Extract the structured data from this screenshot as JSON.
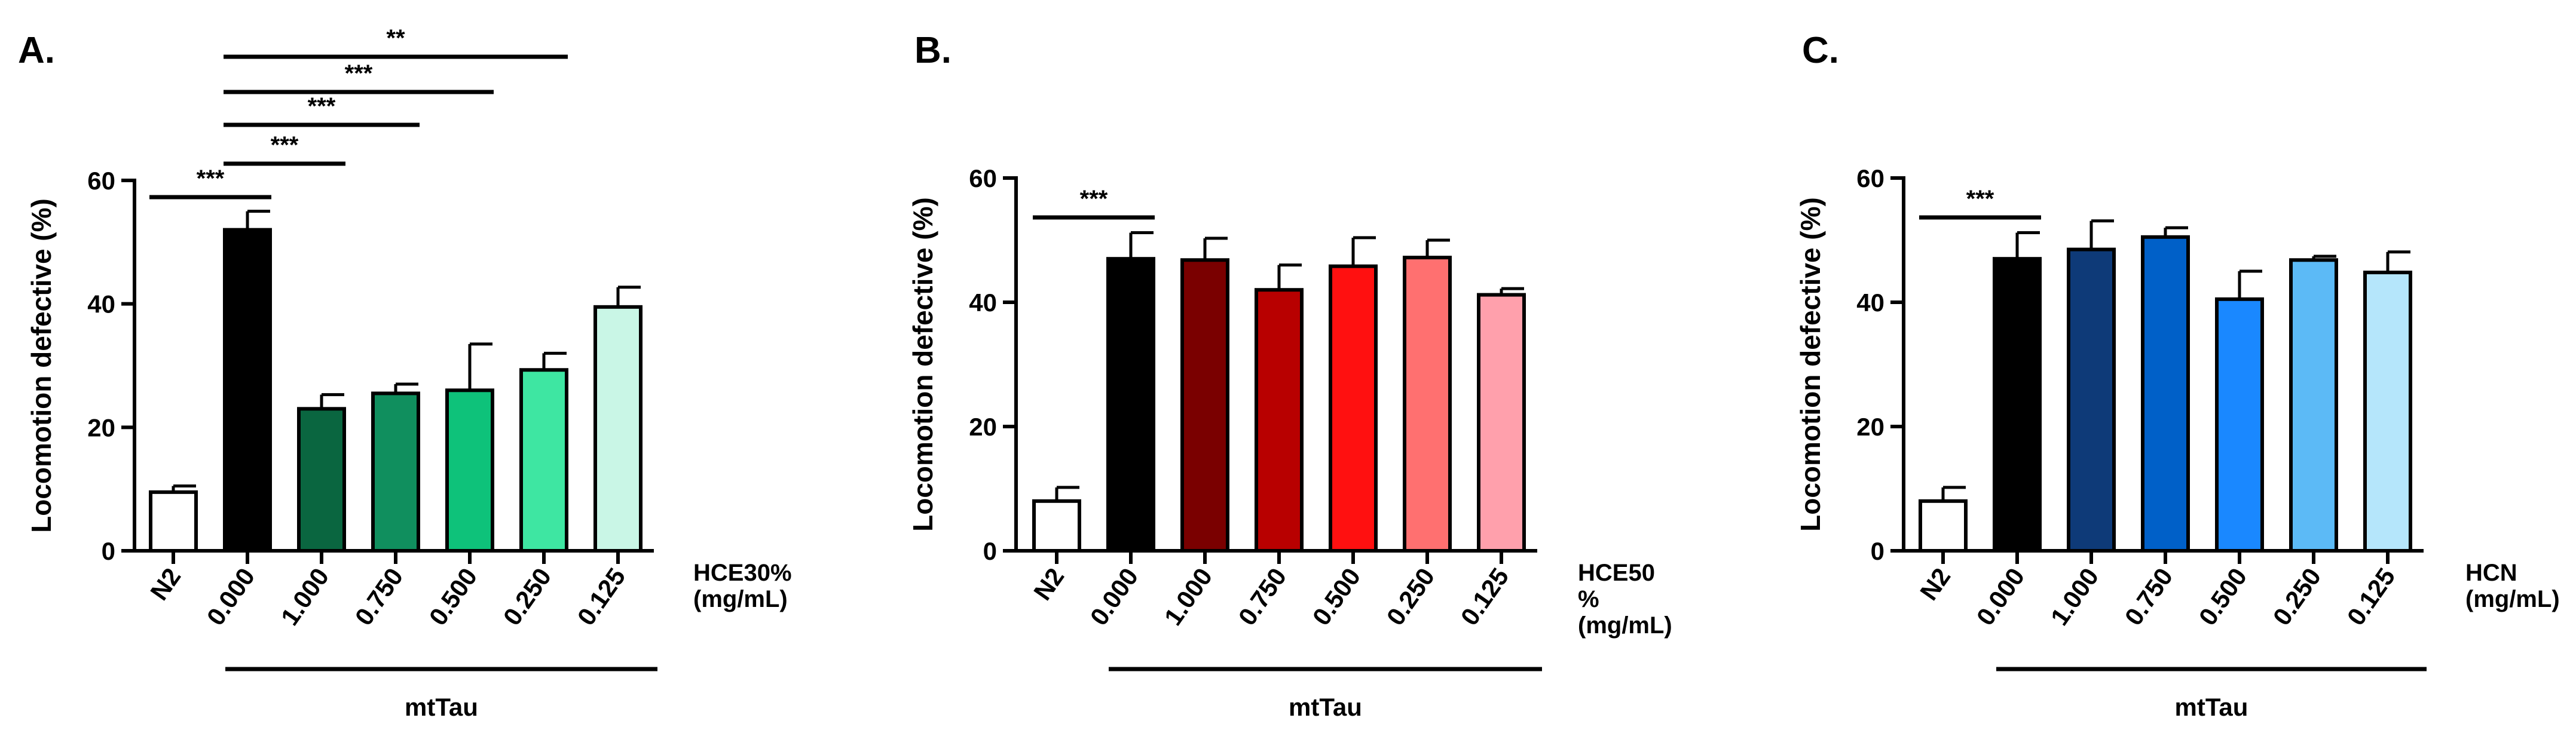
{
  "chart_data": [
    {
      "type": "bar",
      "panel": "A.",
      "ylabel": "Locomotion defective (%)",
      "ylim": [
        0,
        60
      ],
      "yticks": [
        0,
        20,
        40,
        60
      ],
      "categories": [
        "N2",
        "0.000",
        "1.000",
        "0.750",
        "0.500",
        "0.250",
        "0.125"
      ],
      "values": [
        9.5,
        52,
        23,
        25.5,
        26,
        29.3,
        39.5
      ],
      "errors": [
        1,
        3,
        2.3,
        1.5,
        7.5,
        2.7,
        3.2
      ],
      "colors": [
        "#ffffff",
        "#000000",
        "#0a6640",
        "#108f5e",
        "#0ec27a",
        "#3ee6a2",
        "#c9f6e6"
      ],
      "dose_label": [
        "HCE30%",
        "(mg/mL)"
      ],
      "group_label": "mtTau",
      "significance": [
        {
          "from": 0,
          "to": 1,
          "label": "***"
        },
        {
          "from": 1,
          "to": 2,
          "label": "***"
        },
        {
          "from": 1,
          "to": 3,
          "label": "***"
        },
        {
          "from": 1,
          "to": 4,
          "label": "***"
        },
        {
          "from": 1,
          "to": 5,
          "label": "**"
        }
      ]
    },
    {
      "type": "bar",
      "panel": "B.",
      "ylabel": "Locomotion defective (%)",
      "ylim": [
        0,
        60
      ],
      "yticks": [
        0,
        20,
        40,
        60
      ],
      "categories": [
        "N2",
        "0.000",
        "1.000",
        "0.750",
        "0.500",
        "0.250",
        "0.125"
      ],
      "values": [
        8,
        47,
        46.8,
        42,
        45.8,
        47.2,
        41.2
      ],
      "errors": [
        2.2,
        4.2,
        3.5,
        4,
        4.6,
        2.8,
        1
      ],
      "colors": [
        "#ffffff",
        "#000000",
        "#7a0000",
        "#b80000",
        "#ff1010",
        "#ff7070",
        "#ffa0ac"
      ],
      "dose_label": [
        "HCE50",
        "%",
        "(mg/mL)"
      ],
      "group_label": "mtTau",
      "significance": [
        {
          "from": 0,
          "to": 1,
          "label": "***"
        }
      ]
    },
    {
      "type": "bar",
      "panel": "C.",
      "ylabel": "Locomotion defective (%)",
      "ylim": [
        0,
        60
      ],
      "yticks": [
        0,
        20,
        40,
        60
      ],
      "categories": [
        "N2",
        "0.000",
        "1.000",
        "0.750",
        "0.500",
        "0.250",
        "0.125"
      ],
      "values": [
        8,
        47,
        48.5,
        50.5,
        40.5,
        46.8,
        44.8
      ],
      "errors": [
        2.2,
        4.2,
        4.6,
        1.5,
        4.5,
        0.6,
        3.3
      ],
      "colors": [
        "#ffffff",
        "#000000",
        "#0e3a78",
        "#0060c8",
        "#1a88ff",
        "#5cbaf6",
        "#b5e6fb"
      ],
      "dose_label": [
        "HCN",
        "(mg/mL)"
      ],
      "group_label": "mtTau",
      "significance": [
        {
          "from": 0,
          "to": 1,
          "label": "***"
        }
      ]
    }
  ]
}
